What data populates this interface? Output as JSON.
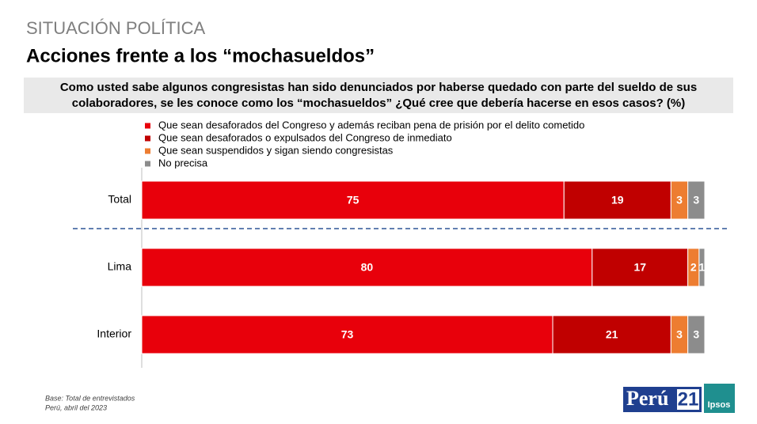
{
  "chart_data": {
    "type": "stacked-bar",
    "subtitle": "SITUACIÓN POLÍTICA",
    "title": "Acciones frente a los “mochasueldos”",
    "question": "Como usted sabe algunos congresistas han sido denunciados por haberse quedado con parte del sueldo de sus colaboradores, se les conoce como los “mochasueldos” ¿Qué cree que debería hacerse en esos casos? (%)",
    "categories": [
      "Total",
      "Lima",
      "Interior"
    ],
    "series": [
      {
        "name": "Que sean desaforados del Congreso y además reciban pena de prisión por el delito cometido",
        "color": "#e8000b",
        "values": [
          75,
          80,
          73
        ]
      },
      {
        "name": "Que sean desaforados o expulsados del Congreso de inmediato",
        "color": "#c00000",
        "values": [
          19,
          17,
          21
        ]
      },
      {
        "name": "Que sean suspendidos y sigan siendo congresistas",
        "color": "#ed7d31",
        "values": [
          3,
          2,
          3
        ]
      },
      {
        "name": "No precisa",
        "color": "#8c8c8c",
        "values": [
          3,
          1,
          3
        ]
      }
    ]
  },
  "footnotes": [
    "Base: Total de entrevistados",
    "Perú, abril del 2023"
  ],
  "logos": {
    "brand": "Perú",
    "brand_number": "21",
    "partner": "Ipsos"
  }
}
